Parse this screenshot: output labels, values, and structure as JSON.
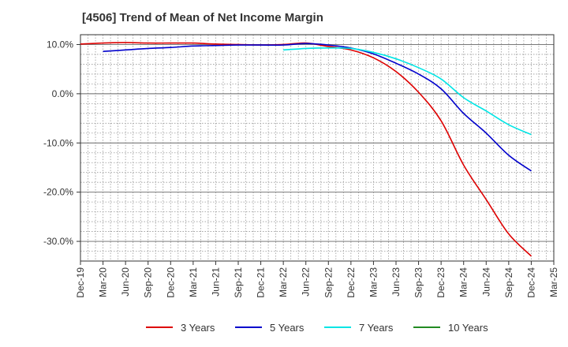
{
  "chart_data": {
    "type": "line",
    "title": "[4506]  Trend of Mean of Net Income Margin",
    "ylim": [
      -34,
      12
    ],
    "y_ticks": [
      10,
      0,
      -10,
      -20,
      -30
    ],
    "y_tick_labels": [
      "10.0%",
      "0.0%",
      "-10.0%",
      "-20.0%",
      "-30.0%"
    ],
    "x_ticks": [
      "Dec-19",
      "Mar-20",
      "Jun-20",
      "Sep-20",
      "Dec-20",
      "Mar-21",
      "Jun-21",
      "Sep-21",
      "Dec-21",
      "Mar-22",
      "Jun-22",
      "Sep-22",
      "Dec-22",
      "Mar-23",
      "Jun-23",
      "Sep-23",
      "Dec-23",
      "Mar-24",
      "Jun-24",
      "Sep-24",
      "Dec-24",
      "Mar-25"
    ],
    "grid": true,
    "legend_position": "bottom",
    "series": [
      {
        "name": "3 Years",
        "color": "#dd0000",
        "x": [
          "Dec-19",
          "Mar-20",
          "Jun-20",
          "Sep-20",
          "Dec-20",
          "Mar-21",
          "Jun-21",
          "Sep-21",
          "Dec-21",
          "Mar-22",
          "Jun-22",
          "Sep-22",
          "Dec-22",
          "Mar-23",
          "Jun-23",
          "Sep-23",
          "Dec-23",
          "Mar-24",
          "Jun-24",
          "Sep-24",
          "Dec-24"
        ],
        "values": [
          10.1,
          10.3,
          10.4,
          10.3,
          10.3,
          10.3,
          10.1,
          10.0,
          9.9,
          10.0,
          10.3,
          9.6,
          8.9,
          7.3,
          4.5,
          0.3,
          -5.5,
          -14.5,
          -21.5,
          -28.5,
          -33.0
        ]
      },
      {
        "name": "5 Years",
        "color": "#0000cc",
        "x": [
          "Mar-20",
          "Jun-20",
          "Sep-20",
          "Dec-20",
          "Mar-21",
          "Jun-21",
          "Sep-21",
          "Dec-21",
          "Mar-22",
          "Jun-22",
          "Sep-22",
          "Dec-22",
          "Mar-23",
          "Jun-23",
          "Sep-23",
          "Dec-23",
          "Mar-24",
          "Jun-24",
          "Sep-24",
          "Dec-24"
        ],
        "values": [
          8.6,
          8.9,
          9.2,
          9.4,
          9.7,
          9.8,
          9.9,
          9.9,
          9.9,
          10.2,
          9.9,
          9.3,
          8.1,
          6.2,
          4.0,
          1.0,
          -4.0,
          -8.0,
          -12.5,
          -15.7
        ]
      },
      {
        "name": "7 Years",
        "color": "#00e5e5",
        "x": [
          "Mar-22",
          "Jun-22",
          "Sep-22",
          "Dec-22",
          "Mar-23",
          "Jun-23",
          "Sep-23",
          "Dec-23",
          "Mar-24",
          "Jun-24",
          "Sep-24",
          "Dec-24"
        ],
        "values": [
          8.9,
          9.2,
          9.3,
          9.2,
          8.4,
          7.1,
          5.3,
          3.0,
          -0.8,
          -3.5,
          -6.3,
          -8.3
        ]
      },
      {
        "name": "10 Years",
        "color": "#228b22",
        "x": [],
        "values": []
      }
    ]
  }
}
